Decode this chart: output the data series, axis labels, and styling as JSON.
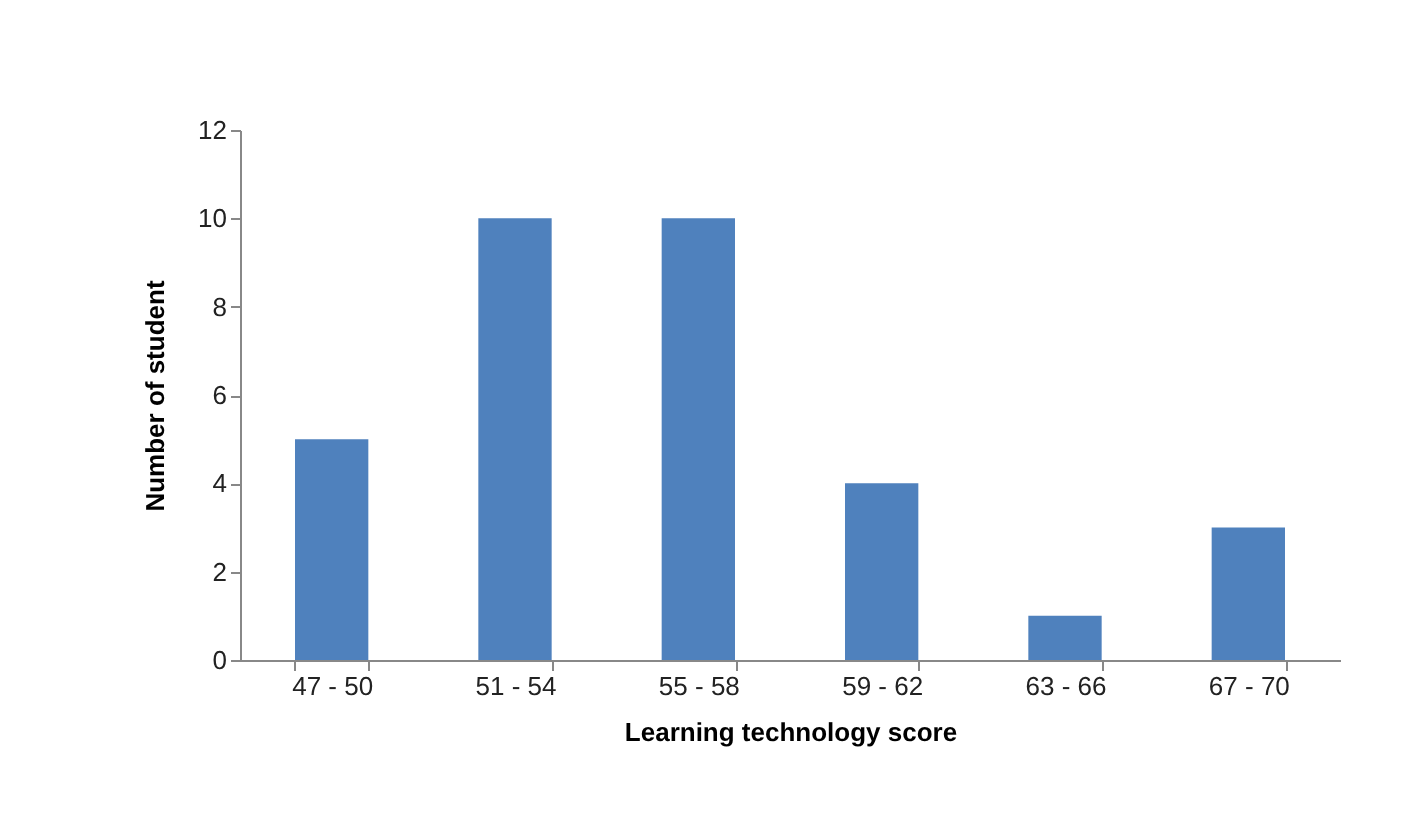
{
  "chart_data": {
    "type": "bar",
    "xlabel": "Learning technology score",
    "ylabel": "Number of student",
    "categories": [
      "47 -  50",
      "51 - 54",
      "55 - 58",
      "59 - 62",
      "63 - 66",
      "67 - 70"
    ],
    "values": [
      5,
      10,
      10,
      4,
      1,
      3
    ],
    "color": "#4f81bd",
    "ylim": [
      0,
      12
    ],
    "yticks": [
      0,
      2,
      4,
      6,
      8,
      10,
      12
    ],
    "grid": false
  }
}
